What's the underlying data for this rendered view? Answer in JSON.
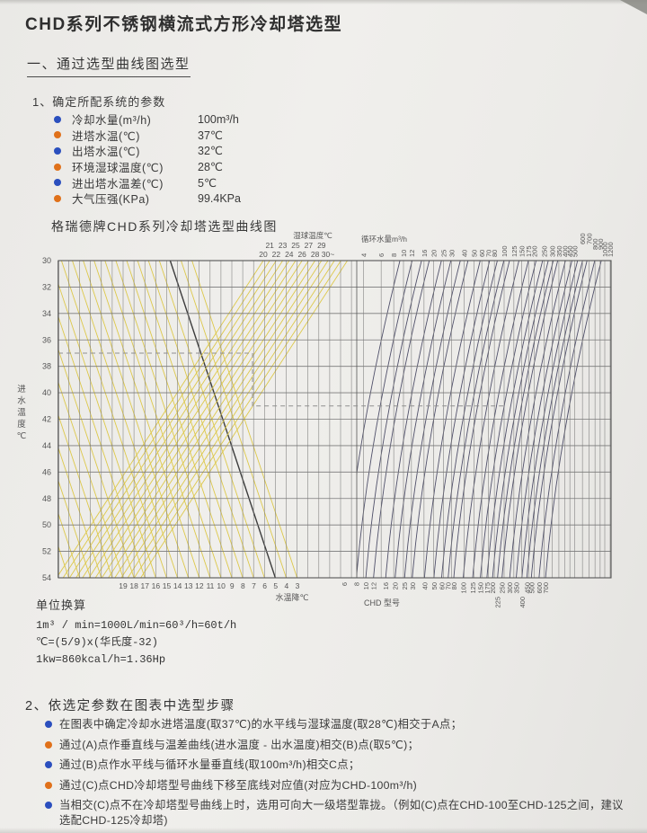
{
  "header": {
    "title": "CHD系列不锈钢横流式方形冷却塔选型"
  },
  "section1": {
    "heading": "一、通过选型曲线图选型",
    "params_heading": "1、确定所配系统的参数",
    "parameters": [
      {
        "label": "冷却水量(m³/h)",
        "value": "100m³/h",
        "bullet": "#2b4fbe"
      },
      {
        "label": "进塔水温(℃)",
        "value": "37℃",
        "bullet": "#e0711a"
      },
      {
        "label": "出塔水温(℃)",
        "value": "32℃",
        "bullet": "#2b4fbe"
      },
      {
        "label": "环境湿球温度(℃)",
        "value": "28℃",
        "bullet": "#e0711a"
      },
      {
        "label": "进出塔水温差(℃)",
        "value": "5℃",
        "bullet": "#2b4fbe"
      },
      {
        "label": "大气压强(KPa)",
        "value": "99.4KPa",
        "bullet": "#e0711a"
      }
    ]
  },
  "chart_data": {
    "type": "line",
    "title": "格瑞德牌CHD系列冷却塔选型曲线图",
    "left_axis": {
      "label": "进水温度℃",
      "ticks": [
        30,
        32,
        34,
        36,
        38,
        40,
        42,
        44,
        46,
        48,
        50,
        52,
        54
      ],
      "range": [
        30,
        54
      ]
    },
    "top_left_axis": {
      "label": "湿球温度℃",
      "ticks": [
        "20",
        "21",
        "22",
        "23",
        "24",
        "25",
        "26",
        "27",
        "28",
        "29",
        "30~"
      ]
    },
    "bottom_left_axis": {
      "label": "水温降℃",
      "ticks": [
        19,
        18,
        17,
        16,
        15,
        14,
        13,
        12,
        11,
        10,
        9,
        8,
        7,
        6,
        5,
        4,
        3
      ]
    },
    "top_right_axis": {
      "label": "循环水量m³/h",
      "ticks": [
        4,
        6,
        8,
        10,
        12,
        16,
        20,
        25,
        30,
        40,
        50,
        60,
        70,
        80,
        100,
        125,
        150,
        175,
        200,
        250,
        300,
        350,
        400,
        450,
        500,
        600,
        700,
        800,
        900,
        1000,
        1200
      ]
    },
    "bottom_right_axis": {
      "label": "CHD 型号",
      "ticks": [
        6,
        8,
        10,
        12,
        16,
        20,
        25,
        30,
        40,
        50,
        60,
        70,
        80,
        100,
        125,
        150,
        175,
        200,
        225,
        250,
        300,
        350,
        400,
        450,
        500,
        600,
        700
      ]
    },
    "selection_example": {
      "inlet_temp": 37,
      "wet_bulb": 28,
      "temp_diff": 5,
      "flow": 100,
      "model": "CHD-100"
    },
    "grid": true,
    "colors": {
      "grid": "#7a7a7a",
      "border": "#555555",
      "wet_bulb_curves": "#ddc84a",
      "temp_drop_curves": "#ddc84a",
      "highlight_curve": "#3c3c3c",
      "model_curves": "#50506a",
      "dashed_path": "#8f8f8f",
      "tick_text": "#555555"
    }
  },
  "conversions": {
    "heading": "单位换算",
    "lines": [
      "1m³ / min=1000L/min=60³/h=60t/h",
      "℃=(5/9)x(华氏度-32)",
      "1kw=860kcal/h=1.36Hp"
    ]
  },
  "section2": {
    "heading": "2、依选定参数在图表中选型步骤",
    "steps": [
      {
        "text": "在图表中确定冷却水进塔温度(取37℃)的水平线与湿球温度(取28℃)相交于A点；",
        "bullet": "#2b4fbe"
      },
      {
        "text": "通过(A)点作垂直线与温差曲线(进水温度 - 出水温度)相交(B)点(取5℃)；",
        "bullet": "#e0711a"
      },
      {
        "text": "通过(B)点作水平线与循环水量垂直线(取100m³/h)相交C点；",
        "bullet": "#2b4fbe"
      },
      {
        "text": "通过(C)点CHD冷却塔型号曲线下移至底线对应值(对应为CHD-100m³/h)",
        "bullet": "#e0711a"
      },
      {
        "text": "当相交(C)点不在冷却塔型号曲线上时，选用可向大一级塔型靠拢。（例如(C)点在CHD-100至CHD-125之间，建议选配CHD-125冷却塔)",
        "bullet": "#2b4fbe"
      }
    ]
  }
}
